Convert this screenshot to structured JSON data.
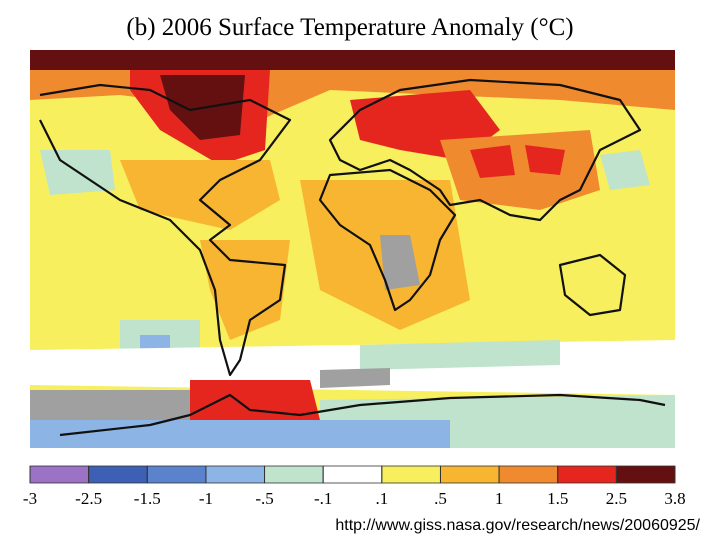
{
  "title": "(b) 2006 Surface Temperature Anomaly (°C)",
  "colorbar": {
    "ticks": [
      -3,
      {
        "value": -2.5,
        "label": "-2.5"
      },
      {
        "value": -1.5,
        "label": "-1.5"
      },
      -1,
      {
        "value": -0.5,
        "label": "-.5"
      },
      {
        "value": -0.1,
        "label": "-.1"
      },
      {
        "value": 0.1,
        "label": ".1"
      },
      {
        "value": 0.5,
        "label": ".5"
      },
      1,
      1.5,
      2.5,
      3.8
    ],
    "colors": [
      "#9b72c4",
      "#3d5fb4",
      "#5b82cc",
      "#8cb4e4",
      "#bfe3cc",
      "#ffffff",
      "#f7ef5e",
      "#f7b532",
      "#f08a2e",
      "#e5261f",
      "#651010"
    ]
  },
  "source": "http://www.giss.nasa.gov/research/news/20060925/"
}
